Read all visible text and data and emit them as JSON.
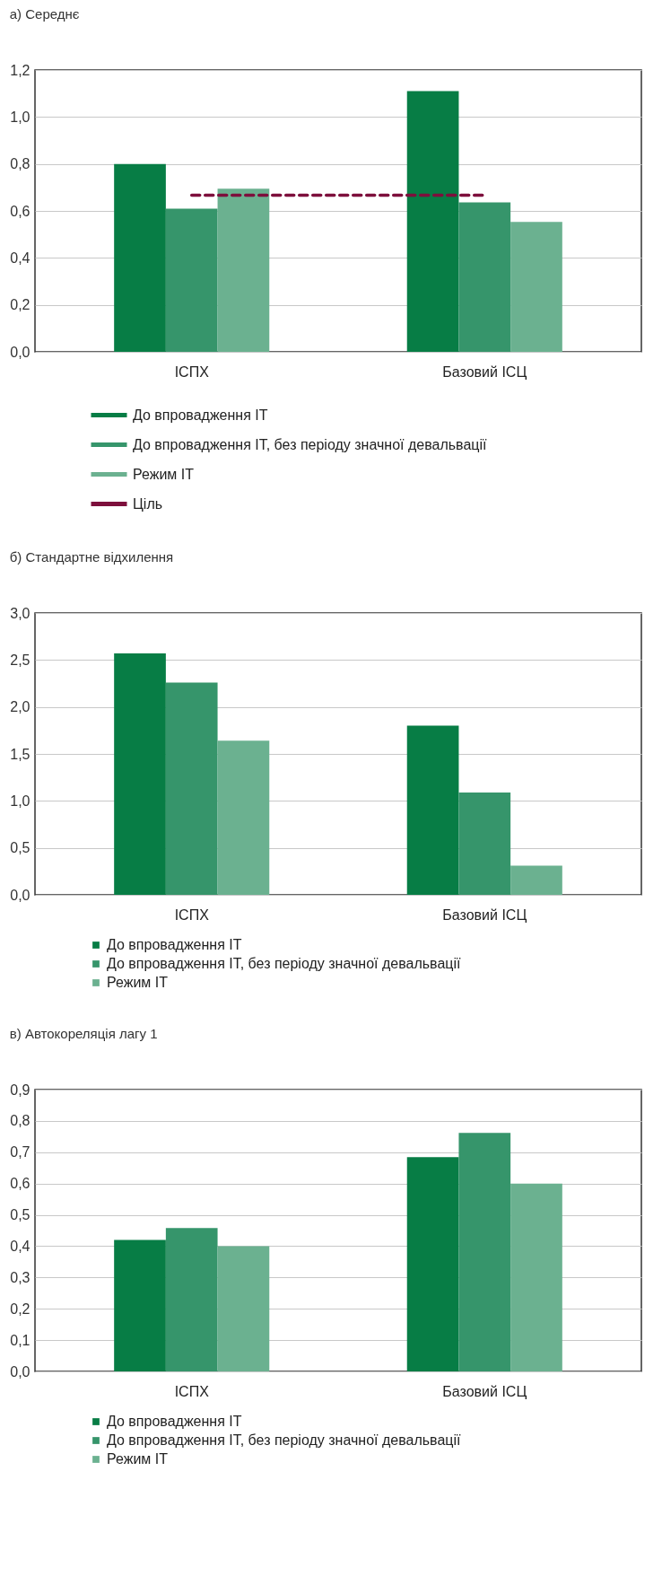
{
  "chart_data": [
    {
      "type": "bar",
      "title": "а) Середнє",
      "categories": [
        "ІСПХ",
        "Базовий ІСЦ"
      ],
      "series": [
        {
          "name": "До впровадження ІТ",
          "color": "#077d45",
          "values": [
            0.8,
            1.11
          ]
        },
        {
          "name": "До впровадження ІТ, без періоду значної девальвації",
          "color": "#36956b",
          "values": [
            0.61,
            0.636
          ]
        },
        {
          "name": "Режим ІТ",
          "color": "#6bb190",
          "values": [
            0.695,
            0.553
          ]
        },
        {
          "name": "Ціль",
          "type": "line",
          "color": "#7d0f3c",
          "line_style": "dashed",
          "values": [
            0.667,
            0.667
          ]
        }
      ],
      "ylim": [
        0,
        1.2
      ],
      "yticks": [
        {
          "value": 0,
          "label": "0,0"
        },
        {
          "value": 0.2,
          "label": "0,2"
        },
        {
          "value": 0.4,
          "label": "0,4"
        },
        {
          "value": 0.6,
          "label": "0,6"
        },
        {
          "value": 0.8,
          "label": "0,8"
        },
        {
          "value": 1,
          "label": "1,0"
        },
        {
          "value": 1.2,
          "label": "1,2"
        }
      ],
      "grid": "y",
      "legend": "bottom"
    },
    {
      "type": "bar",
      "title": "б) Стандартне відхилення",
      "categories": [
        "ІСПХ",
        "Базовий ІСЦ"
      ],
      "series": [
        {
          "name": "До впровадження ІТ",
          "color": "#077d45",
          "values": [
            2.57,
            1.8
          ]
        },
        {
          "name": "До впровадження ІТ, без періоду значної девальвації",
          "color": "#36956b",
          "values": [
            2.26,
            1.09
          ]
        },
        {
          "name": "Режим ІТ",
          "color": "#6bb190",
          "values": [
            1.64,
            0.31
          ]
        }
      ],
      "ylim": [
        0,
        3
      ],
      "yticks": [
        {
          "value": 0,
          "label": "0,0"
        },
        {
          "value": 0.5,
          "label": "0,5"
        },
        {
          "value": 1,
          "label": "1,0"
        },
        {
          "value": 1.5,
          "label": "1,5"
        },
        {
          "value": 2,
          "label": "2,0"
        },
        {
          "value": 2.5,
          "label": "2,5"
        },
        {
          "value": 3,
          "label": "3,0"
        }
      ],
      "grid": "y",
      "legend": "bottom"
    },
    {
      "type": "bar",
      "title": "в) Автокореляція лагу 1",
      "categories": [
        "ІСПХ",
        "Базовий ІСЦ"
      ],
      "series": [
        {
          "name": "До впровадження ІТ",
          "color": "#077d45",
          "values": [
            0.42,
            0.684
          ]
        },
        {
          "name": "До впровадження ІТ, без періоду значної девальвації",
          "color": "#36956b",
          "values": [
            0.458,
            0.762
          ]
        },
        {
          "name": "Режим ІТ",
          "color": "#6bb190",
          "values": [
            0.4,
            0.6
          ]
        }
      ],
      "ylim": [
        0,
        0.9
      ],
      "yticks": [
        {
          "value": 0,
          "label": "0,0"
        },
        {
          "value": 0.1,
          "label": "0,1"
        },
        {
          "value": 0.2,
          "label": "0,2"
        },
        {
          "value": 0.3,
          "label": "0,3"
        },
        {
          "value": 0.4,
          "label": "0,4"
        },
        {
          "value": 0.5,
          "label": "0,5"
        },
        {
          "value": 0.6,
          "label": "0,6"
        },
        {
          "value": 0.7,
          "label": "0,7"
        },
        {
          "value": 0.8,
          "label": "0,8"
        },
        {
          "value": 0.9,
          "label": "0,9"
        }
      ],
      "grid": "y",
      "legend": "bottom"
    }
  ]
}
